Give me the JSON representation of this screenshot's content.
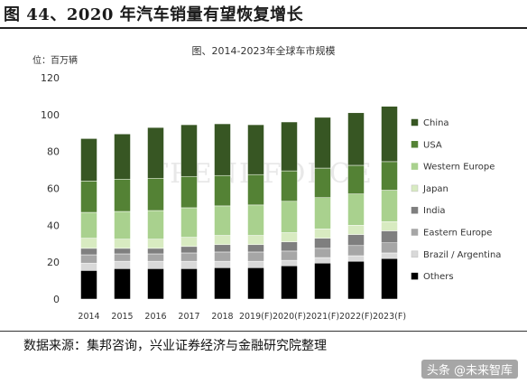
{
  "figure_title": "图 44、2020 年汽车销量有望恢复增长",
  "source_note": "数据来源：集邦咨询，兴业证券经济与金融研究院整理",
  "credit": "头条 @未来智库",
  "watermark_text": "TRENDFORCE",
  "chart_data": {
    "type": "bar",
    "stacked": true,
    "title": "图、2014-2023年全球车市规模",
    "unit_label": "位：百万辆",
    "categories": [
      "2014",
      "2015",
      "2016",
      "2017",
      "2018",
      "2019(F)",
      "2020(F)",
      "2021(F)",
      "2022(F)",
      "2023(F)"
    ],
    "ylim": [
      0,
      120
    ],
    "yticks": [
      0,
      20,
      40,
      60,
      80,
      100,
      120
    ],
    "grid": false,
    "legend_position": "right",
    "series": [
      {
        "name": "Others",
        "color": "#000000",
        "values": [
          15.5,
          16.5,
          16.5,
          16.5,
          17,
          17,
          18,
          19.5,
          20.5,
          22
        ]
      },
      {
        "name": "Brazil / Argentina",
        "color": "#d9d9d9",
        "values": [
          4,
          4,
          4,
          4,
          3.5,
          3.5,
          3,
          3,
          3,
          3
        ]
      },
      {
        "name": "Eastern Europe",
        "color": "#a6a6a6",
        "values": [
          4.5,
          4,
          4,
          4.5,
          5,
          5,
          5,
          5,
          5.5,
          5.5
        ]
      },
      {
        "name": "India",
        "color": "#7f7f7f",
        "values": [
          3.5,
          3,
          3,
          3.5,
          4,
          4,
          5,
          5.5,
          6,
          6.5
        ]
      },
      {
        "name": "Japan",
        "color": "#d8ebc1",
        "values": [
          5.5,
          5,
          5,
          5,
          5,
          5,
          5,
          5,
          5,
          5
        ]
      },
      {
        "name": "Western Europe",
        "color": "#a9d18e",
        "values": [
          14,
          15,
          15.5,
          16,
          16,
          16.5,
          17,
          17,
          17,
          17
        ]
      },
      {
        "name": "USA",
        "color": "#548235",
        "values": [
          17,
          17.5,
          17.5,
          17,
          16.5,
          16.5,
          16.5,
          16,
          15.5,
          15.5
        ]
      },
      {
        "name": "China",
        "color": "#375623",
        "values": [
          23,
          24.5,
          27.5,
          28,
          28,
          27,
          26.5,
          27.5,
          28.5,
          30
        ]
      }
    ]
  }
}
